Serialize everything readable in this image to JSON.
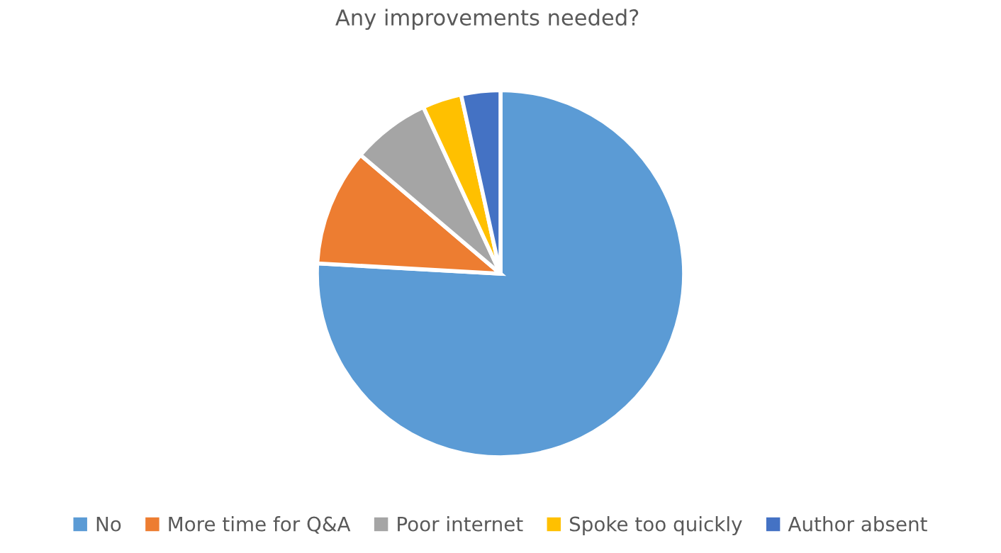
{
  "chart_data": {
    "type": "pie",
    "title": "Any improvements needed?",
    "categories": [
      "No",
      "More time for Q&A",
      "Poor internet",
      "Spoke too quickly",
      "Author absent"
    ],
    "values": [
      75.9,
      10.3,
      6.9,
      3.45,
      3.45
    ],
    "colors": [
      "#5b9bd5",
      "#ed7d31",
      "#a5a5a5",
      "#ffc000",
      "#4472c4"
    ],
    "legend": "bottom"
  }
}
